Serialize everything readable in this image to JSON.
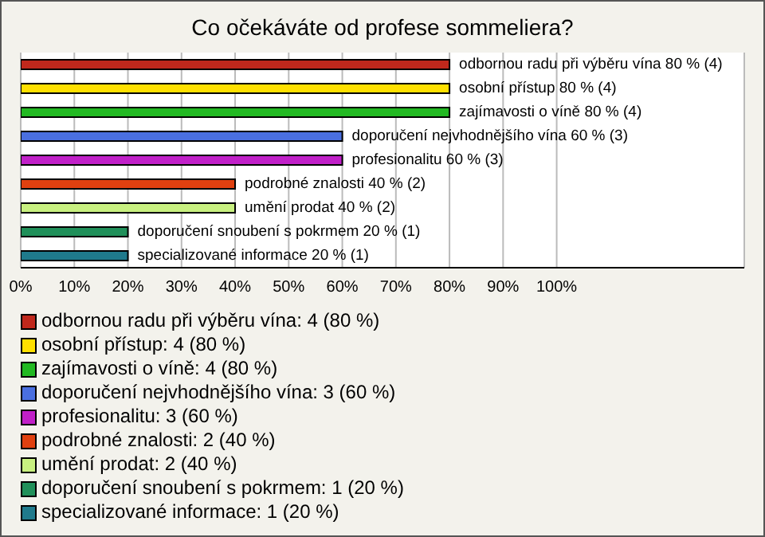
{
  "chart_data": {
    "type": "bar",
    "orientation": "horizontal",
    "stacked": true,
    "title": "Co očekáváte od profese sommeliera?",
    "categories": [
      null,
      null,
      null,
      null,
      null,
      null,
      null,
      null,
      null
    ],
    "series": [
      {
        "name": "odbornou radu při výběru vína: 4 (80 %)",
        "color": "#c0281c",
        "values": [
          80,
          null,
          null,
          null,
          null,
          null,
          null,
          null,
          null
        ],
        "value_labels": [
          "odbornou radu při výběru vína 80 % (4)",
          null,
          null,
          null,
          null,
          null,
          null,
          null,
          null
        ]
      },
      {
        "name": "osobní přístup: 4 (80 %)",
        "color": "#ffe000",
        "values": [
          null,
          80,
          null,
          null,
          null,
          null,
          null,
          null,
          null
        ],
        "value_labels": [
          null,
          "osobní přístup 80 % (4)",
          null,
          null,
          null,
          null,
          null,
          null,
          null
        ]
      },
      {
        "name": "zajímavosti o víně: 4 (80 %)",
        "color": "#22b922",
        "values": [
          null,
          null,
          80,
          null,
          null,
          null,
          null,
          null,
          null
        ],
        "value_labels": [
          null,
          null,
          "zajímavosti o víně 80 % (4)",
          null,
          null,
          null,
          null,
          null,
          null
        ]
      },
      {
        "name": "doporučení nejvhodnějšího vína: 3 (60 %)",
        "color": "#4a6fe0",
        "values": [
          null,
          null,
          null,
          60,
          null,
          null,
          null,
          null,
          null
        ],
        "value_labels": [
          null,
          null,
          null,
          "doporučení nejvhodnějšího vína 60 % (3)",
          null,
          null,
          null,
          null,
          null
        ]
      },
      {
        "name": "profesionalitu: 3 (60 %)",
        "color": "#c020c8",
        "values": [
          null,
          null,
          null,
          null,
          60,
          null,
          null,
          null,
          null
        ],
        "value_labels": [
          null,
          null,
          null,
          null,
          "profesionalitu 60 % (3)",
          null,
          null,
          null,
          null
        ]
      },
      {
        "name": "podrobné znalosti: 2 (40 %)",
        "color": "#e04010",
        "values": [
          null,
          null,
          null,
          null,
          null,
          40,
          null,
          null,
          null
        ],
        "value_labels": [
          null,
          null,
          null,
          null,
          null,
          "podrobné znalosti 40 % (2)",
          null,
          null,
          null
        ]
      },
      {
        "name": "umění prodat: 2 (40 %)",
        "color": "#c8f080",
        "values": [
          null,
          null,
          null,
          null,
          null,
          null,
          40,
          null,
          null
        ],
        "value_labels": [
          null,
          null,
          null,
          null,
          null,
          null,
          "umění prodat 40 % (2)",
          null,
          null
        ]
      },
      {
        "name": "doporučení snoubení s pokrmem: 1 (20 %)",
        "color": "#20905a",
        "values": [
          null,
          null,
          null,
          null,
          null,
          null,
          null,
          20,
          null
        ],
        "value_labels": [
          null,
          null,
          null,
          null,
          null,
          null,
          null,
          "doporučení snoubení s pokrmem 20 % (1)",
          null
        ]
      },
      {
        "name": "specializované informace: 1 (20 %)",
        "color": "#1f7a8c",
        "values": [
          null,
          null,
          null,
          null,
          null,
          null,
          null,
          null,
          20
        ],
        "value_labels": [
          null,
          null,
          null,
          null,
          null,
          null,
          null,
          null,
          "specializované informace 20 % (1)"
        ]
      }
    ],
    "xlim": [
      0,
      135
    ],
    "xticks": [
      {
        "value": 0,
        "label": "0%"
      },
      {
        "value": 10,
        "label": "10%"
      },
      {
        "value": 20,
        "label": "20%"
      },
      {
        "value": 30,
        "label": "30%"
      },
      {
        "value": 40,
        "label": "40%"
      },
      {
        "value": 50,
        "label": "50%"
      },
      {
        "value": 60,
        "label": "60%"
      },
      {
        "value": 70,
        "label": "70%"
      },
      {
        "value": 80,
        "label": "80%"
      },
      {
        "value": 90,
        "label": "90%"
      },
      {
        "value": 100,
        "label": "100%"
      }
    ],
    "grid": "x",
    "legend": "bottom"
  }
}
